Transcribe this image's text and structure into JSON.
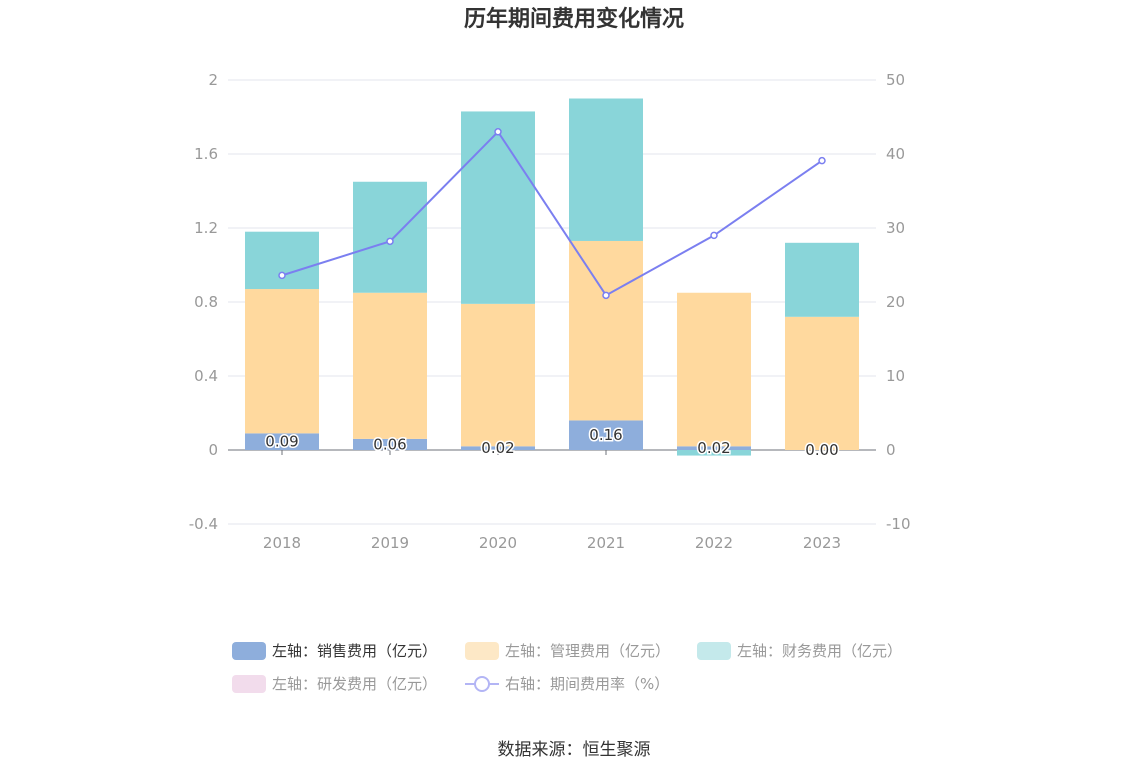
{
  "chart_data": {
    "type": "bar",
    "title": "历年期间费用变化情况",
    "categories": [
      "2018",
      "2019",
      "2020",
      "2021",
      "2022",
      "2023"
    ],
    "stacked": true,
    "left_axis": {
      "ylim": [
        -0.4,
        2
      ],
      "ticks": [
        "-0.4",
        "0",
        "0.4",
        "0.8",
        "1.2",
        "1.6",
        "2"
      ]
    },
    "right_axis": {
      "ylim": [
        -10,
        50
      ],
      "ticks": [
        "-10",
        "0",
        "10",
        "20",
        "30",
        "40",
        "50"
      ]
    },
    "series": [
      {
        "name": "左轴：销售费用（亿元）",
        "axis": "left",
        "type": "bar",
        "color": "#8eaedc",
        "values": [
          0.09,
          0.06,
          0.02,
          0.16,
          0.02,
          0.0
        ],
        "labels": [
          "0.09",
          "0.06",
          "0.02",
          "0.16",
          "0.02",
          "0.00"
        ]
      },
      {
        "name": "左轴：管理费用（亿元）",
        "axis": "left",
        "type": "bar",
        "color": "#ffd99e",
        "values": [
          0.78,
          0.79,
          0.77,
          0.97,
          0.83,
          0.72
        ]
      },
      {
        "name": "左轴：财务费用（亿元）",
        "axis": "left",
        "type": "bar",
        "color": "#89d5d9",
        "values": [
          0.31,
          0.6,
          1.04,
          0.77,
          -0.03,
          0.4
        ]
      },
      {
        "name": "左轴：研发费用（亿元）",
        "axis": "left",
        "type": "bar",
        "color": "#f2dcec",
        "values": [
          0,
          0,
          0,
          0,
          0,
          0
        ]
      },
      {
        "name": "右轴：期间费用率（%）",
        "axis": "right",
        "type": "line",
        "color": "#7b7ff0",
        "values": [
          23.6,
          28.2,
          43.0,
          20.9,
          29.0,
          39.1
        ]
      }
    ],
    "legend": "bottom",
    "grid": true
  },
  "legend_items": [
    {
      "label": "左轴：销售费用（亿元）",
      "color": "#8eaedc",
      "kind": "bar",
      "active": true
    },
    {
      "label": "左轴：管理费用（亿元）",
      "color": "#fde8c6",
      "kind": "bar",
      "active": false
    },
    {
      "label": "左轴：财务费用（亿元）",
      "color": "#c4e9eb",
      "kind": "bar",
      "active": false
    },
    {
      "label": "左轴：研发费用（亿元）",
      "color": "#f2dcec",
      "kind": "bar",
      "active": false
    },
    {
      "label": "右轴：期间费用率（%）",
      "color": "#b3b5f5",
      "kind": "line",
      "active": false
    }
  ],
  "source": "数据来源：恒生聚源"
}
